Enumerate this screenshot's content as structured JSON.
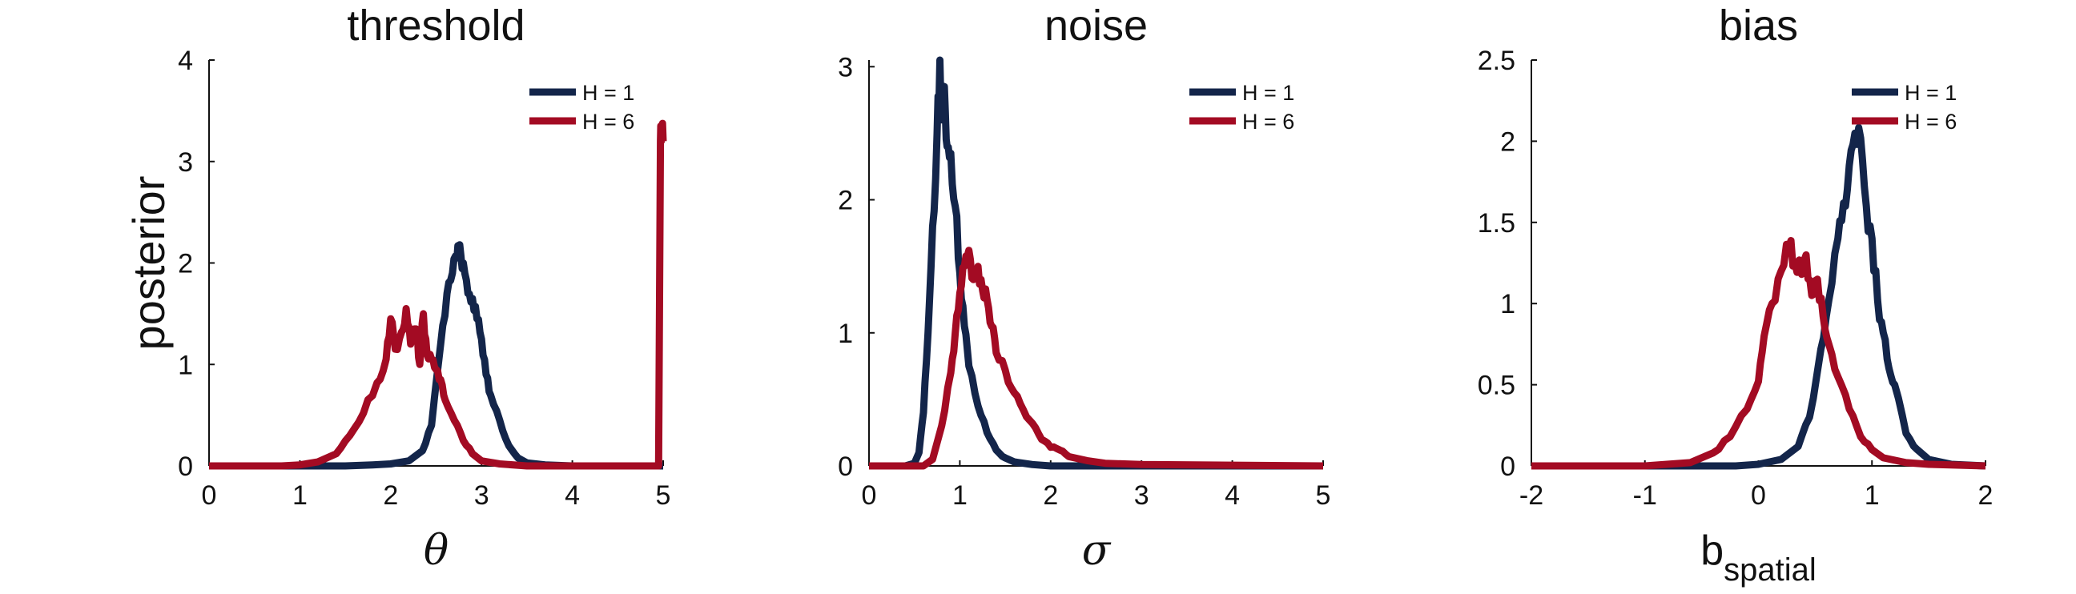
{
  "colors": {
    "H1": "#13254a",
    "H6": "#a30b23",
    "axis": "#111111"
  },
  "chart_data": [
    {
      "type": "line",
      "title": "threshold",
      "xlabel": "θ",
      "xlabel_sub": "",
      "ylabel": "posterior",
      "xlim": [
        0,
        5
      ],
      "ylim": [
        0,
        4
      ],
      "xticks": [
        0,
        1,
        2,
        3,
        4,
        5
      ],
      "xtick_labels": [
        "0",
        "1",
        "2",
        "3",
        "4",
        "5"
      ],
      "yticks": [
        0,
        1,
        2,
        3,
        4
      ],
      "ytick_labels": [
        "0",
        "1",
        "2",
        "3",
        "4"
      ],
      "legend": {
        "position": "top-right",
        "entries": [
          "H = 1",
          "H = 6"
        ]
      },
      "series": [
        {
          "name": "H = 1",
          "color_key": "H1",
          "x": [
            0,
            1.5,
            1.8,
            2.0,
            2.2,
            2.35,
            2.45,
            2.55,
            2.62,
            2.68,
            2.73,
            2.76,
            2.8,
            2.85,
            2.9,
            2.95,
            3.0,
            3.05,
            3.1,
            3.2,
            3.3,
            3.4,
            3.5,
            3.7,
            4.0,
            5.0
          ],
          "y": [
            0,
            0,
            0.01,
            0.02,
            0.05,
            0.15,
            0.4,
            1.2,
            1.7,
            1.9,
            2.05,
            2.18,
            2.0,
            1.7,
            1.65,
            1.45,
            1.25,
            0.9,
            0.7,
            0.45,
            0.2,
            0.08,
            0.03,
            0.01,
            0,
            0
          ]
        },
        {
          "name": "H = 6",
          "color_key": "H6",
          "x": [
            0,
            0.8,
            1.0,
            1.2,
            1.4,
            1.55,
            1.7,
            1.85,
            1.95,
            2.0,
            2.05,
            2.12,
            2.17,
            2.22,
            2.28,
            2.32,
            2.36,
            2.4,
            2.45,
            2.5,
            2.55,
            2.6,
            2.7,
            2.8,
            2.9,
            3.0,
            3.2,
            3.5,
            4.0,
            4.5,
            4.95,
            4.97,
            4.98,
            5.0
          ],
          "y": [
            0,
            0,
            0.01,
            0.04,
            0.12,
            0.3,
            0.52,
            0.82,
            1.05,
            1.45,
            1.15,
            1.32,
            1.55,
            1.2,
            1.35,
            1.0,
            1.5,
            1.1,
            1.05,
            0.95,
            0.85,
            0.65,
            0.45,
            0.25,
            0.12,
            0.05,
            0.02,
            0,
            0,
            0,
            0,
            3.2,
            3.2,
            3.2
          ]
        }
      ]
    },
    {
      "type": "line",
      "title": "noise",
      "xlabel": "σ",
      "xlabel_sub": "",
      "ylabel": "",
      "xlim": [
        0,
        5
      ],
      "ylim": [
        0,
        3.05
      ],
      "xticks": [
        0,
        1,
        2,
        3,
        4,
        5
      ],
      "xtick_labels": [
        "0",
        "1",
        "2",
        "3",
        "4",
        "5"
      ],
      "yticks": [
        0,
        1,
        2,
        3
      ],
      "ytick_labels": [
        "0",
        "1",
        "2",
        "3"
      ],
      "legend": {
        "position": "top-right",
        "entries": [
          "H = 1",
          "H = 6"
        ]
      },
      "series": [
        {
          "name": "H = 1",
          "color_key": "H1",
          "x": [
            0,
            0.4,
            0.5,
            0.55,
            0.6,
            0.65,
            0.7,
            0.75,
            0.78,
            0.8,
            0.83,
            0.86,
            0.9,
            0.95,
            1.0,
            1.05,
            1.1,
            1.2,
            1.3,
            1.4,
            1.5,
            1.6,
            1.8,
            2.0,
            2.5,
            5.0
          ],
          "y": [
            0,
            0,
            0.02,
            0.1,
            0.4,
            1.0,
            1.8,
            2.5,
            3.05,
            2.6,
            2.85,
            2.4,
            2.35,
            1.95,
            1.45,
            1.05,
            0.75,
            0.45,
            0.25,
            0.12,
            0.06,
            0.03,
            0.01,
            0,
            0,
            0
          ]
        },
        {
          "name": "H = 6",
          "color_key": "H6",
          "x": [
            0,
            0.6,
            0.7,
            0.8,
            0.9,
            0.95,
            1.0,
            1.05,
            1.1,
            1.15,
            1.2,
            1.25,
            1.3,
            1.35,
            1.4,
            1.5,
            1.6,
            1.7,
            1.8,
            1.9,
            2.0,
            2.1,
            2.2,
            2.4,
            2.6,
            3.0,
            5.0
          ],
          "y": [
            0,
            0,
            0.05,
            0.3,
            0.7,
            1.0,
            1.3,
            1.5,
            1.62,
            1.4,
            1.5,
            1.32,
            1.25,
            1.05,
            0.85,
            0.72,
            0.55,
            0.42,
            0.32,
            0.2,
            0.14,
            0.12,
            0.07,
            0.04,
            0.02,
            0.01,
            0
          ]
        }
      ]
    },
    {
      "type": "line",
      "title": "bias",
      "xlabel": "b",
      "xlabel_sub": "spatial",
      "ylabel": "",
      "xlim": [
        -2,
        2
      ],
      "ylim": [
        0,
        2.5
      ],
      "xticks": [
        -2,
        -1,
        0,
        1,
        2
      ],
      "xtick_labels": [
        "-2",
        "-1",
        "0",
        "1",
        "2"
      ],
      "yticks": [
        0,
        0.5,
        1,
        1.5,
        2,
        2.5
      ],
      "ytick_labels": [
        "0",
        "0.5",
        "1",
        "1.5",
        "2",
        "2.5"
      ],
      "legend": {
        "position": "top-right",
        "entries": [
          "H = 1",
          "H = 6"
        ]
      },
      "series": [
        {
          "name": "H = 1",
          "color_key": "H1",
          "x": [
            -2,
            -0.2,
            0,
            0.2,
            0.35,
            0.45,
            0.55,
            0.62,
            0.7,
            0.75,
            0.8,
            0.85,
            0.9,
            0.95,
            1.0,
            1.05,
            1.1,
            1.15,
            1.2,
            1.3,
            1.4,
            1.5,
            1.7,
            2.0
          ],
          "y": [
            0,
            0,
            0.01,
            0.04,
            0.12,
            0.3,
            0.72,
            1.02,
            1.4,
            1.62,
            1.85,
            2.05,
            2.02,
            1.6,
            1.4,
            1.02,
            0.82,
            0.6,
            0.5,
            0.2,
            0.1,
            0.04,
            0.01,
            0
          ]
        },
        {
          "name": "H = 6",
          "color_key": "H6",
          "x": [
            -2,
            -1.0,
            -0.6,
            -0.4,
            -0.25,
            -0.1,
            0,
            0.05,
            0.12,
            0.2,
            0.27,
            0.32,
            0.38,
            0.42,
            0.47,
            0.52,
            0.57,
            0.62,
            0.7,
            0.8,
            0.9,
            1.0,
            1.1,
            1.3,
            1.5,
            2.0
          ],
          "y": [
            0,
            0,
            0.02,
            0.08,
            0.18,
            0.35,
            0.52,
            0.8,
            1.0,
            1.2,
            1.35,
            1.25,
            1.18,
            1.3,
            1.05,
            1.15,
            0.92,
            0.75,
            0.55,
            0.35,
            0.18,
            0.1,
            0.05,
            0.02,
            0.01,
            0
          ]
        }
      ]
    }
  ]
}
